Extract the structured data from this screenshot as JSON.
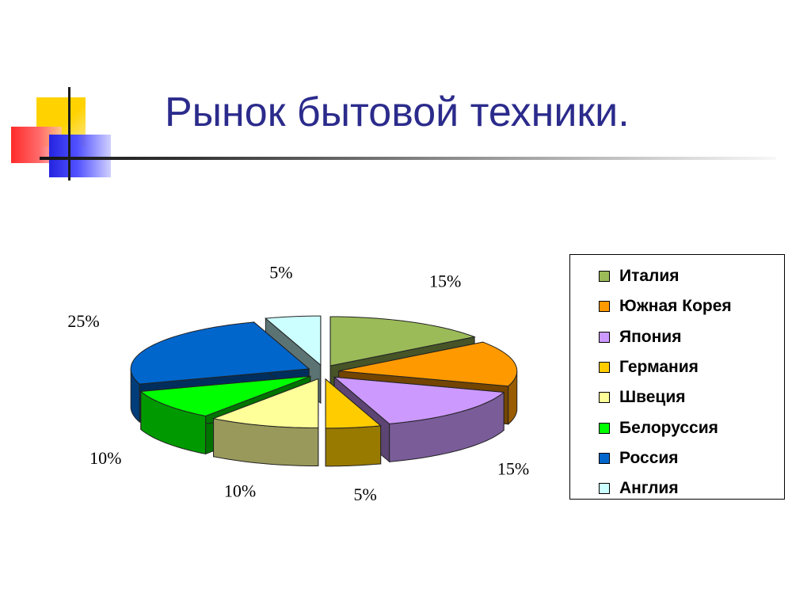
{
  "slide": {
    "title": "Рынок бытовой техники."
  },
  "chart_data": {
    "type": "pie",
    "title": "",
    "categories": [
      "Италия",
      "Южная Корея",
      "Япония",
      "Германия",
      "Швеция",
      "Белоруссия",
      "Россия",
      "Англия"
    ],
    "values": [
      15,
      15,
      15,
      5,
      10,
      10,
      25,
      5
    ],
    "data_labels": [
      "15%",
      "15%",
      "15%",
      "5%",
      "10%",
      "10%",
      "25%",
      "5%"
    ],
    "colors": [
      "#9bbb59",
      "#ff9900",
      "#cc99ff",
      "#ffcc00",
      "#ffff99",
      "#00ff00",
      "#0066cc",
      "#ccffff"
    ],
    "style": "3d-exploded",
    "legend_position": "right"
  }
}
